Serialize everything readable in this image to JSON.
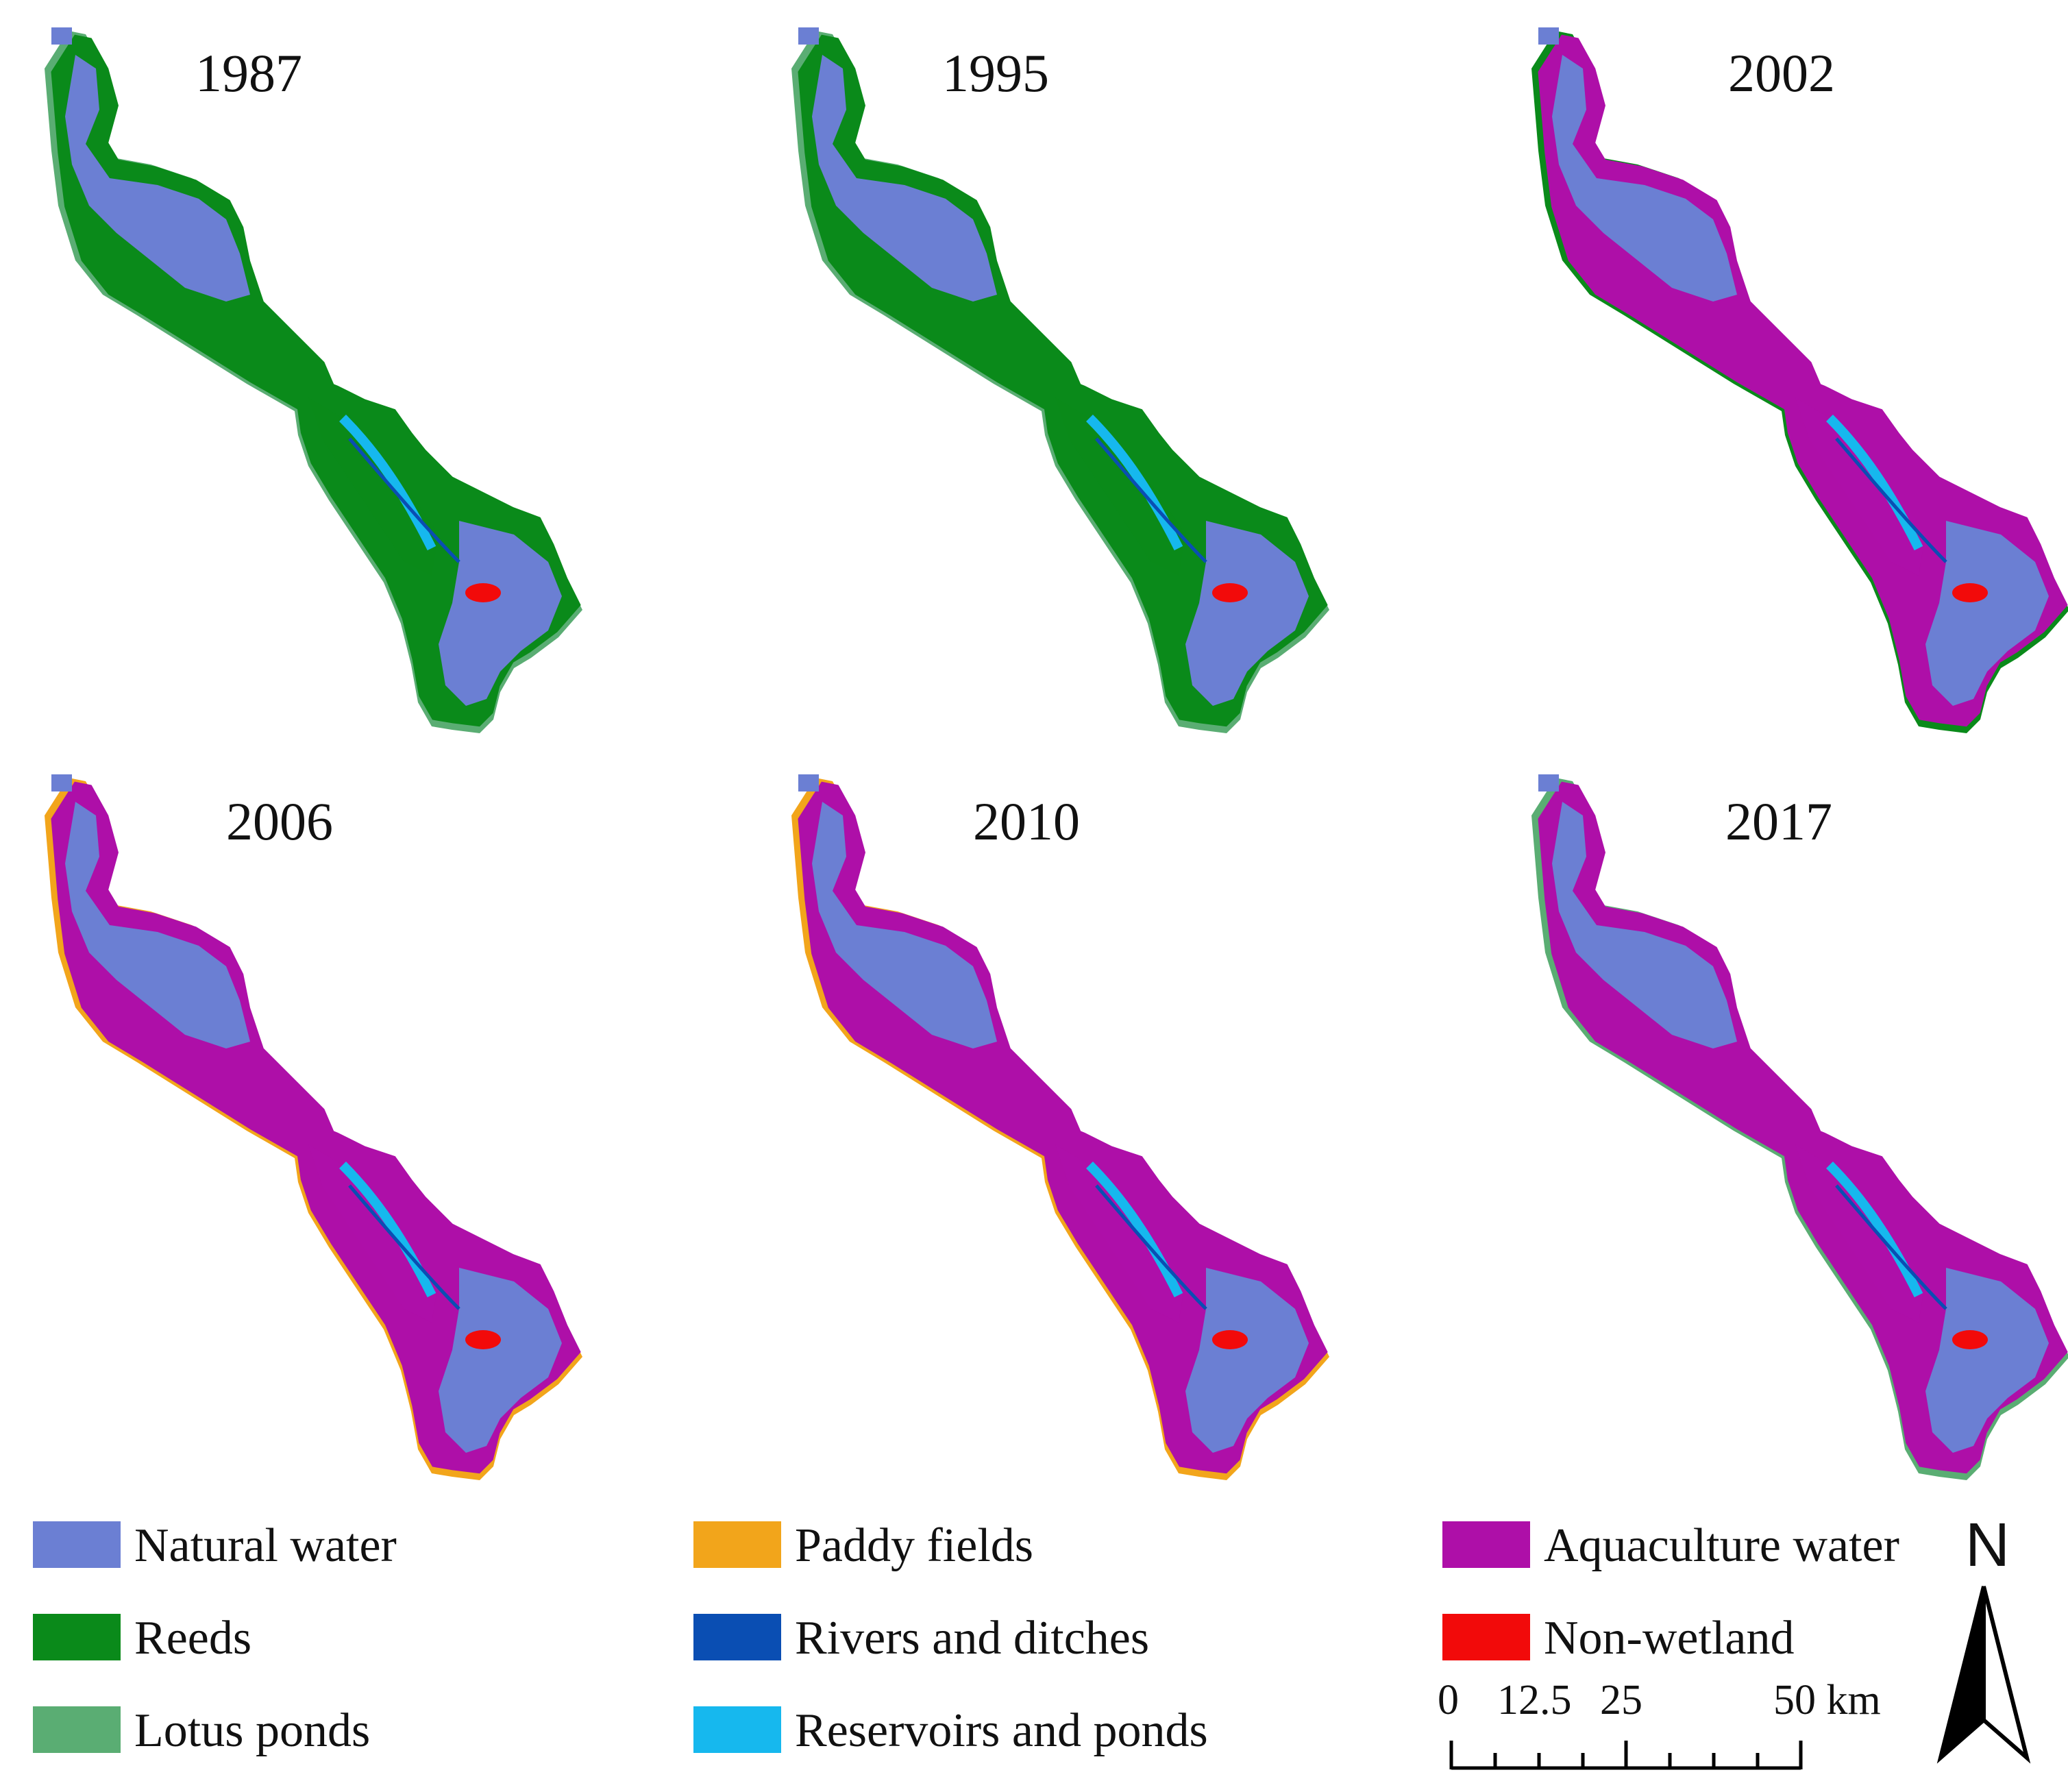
{
  "colors": {
    "natural_water": "#6b7fd3",
    "reeds": "#0a8a1a",
    "lotus_ponds": "#5aad73",
    "paddy_fields": "#f2a51b",
    "rivers_and_ditches": "#0a4eb3",
    "reservoirs_and_ponds": "#16b8ee",
    "aquaculture_water": "#ae0fa8",
    "non_wetland": "#f20a0a"
  },
  "maps": [
    {
      "year": "1987",
      "dominant": "natural_water",
      "secondary": "reeds",
      "margin": "lotus_ponds",
      "patch": "non_wetland"
    },
    {
      "year": "1995",
      "dominant": "natural_water",
      "secondary": "reeds",
      "margin": "lotus_ponds",
      "patch": "non_wetland"
    },
    {
      "year": "2002",
      "dominant": "natural_water",
      "secondary": "aquaculture_water",
      "margin": "reeds",
      "patch": "non_wetland"
    },
    {
      "year": "2006",
      "dominant": "natural_water",
      "secondary": "aquaculture_water",
      "margin": "paddy_fields",
      "patch": "non_wetland"
    },
    {
      "year": "2010",
      "dominant": "natural_water",
      "secondary": "aquaculture_water",
      "margin": "paddy_fields",
      "patch": "non_wetland"
    },
    {
      "year": "2017",
      "dominant": "natural_water",
      "secondary": "aquaculture_water",
      "margin": "lotus_ponds",
      "patch": "non_wetland"
    }
  ],
  "legend": [
    {
      "label": "Natural water",
      "color": "#6b7fd3"
    },
    {
      "label": "Reeds",
      "color": "#0a8a1a"
    },
    {
      "label": "Lotus ponds",
      "color": "#5aad73"
    },
    {
      "label": "Paddy fields",
      "color": "#f2a51b"
    },
    {
      "label": "Rivers and ditches",
      "color": "#0a4eb3"
    },
    {
      "label": "Reservoirs and ponds",
      "color": "#16b8ee"
    },
    {
      "label": "Aquaculture water",
      "color": "#ae0fa8"
    },
    {
      "label": "Non-wetland",
      "color": "#f20a0a"
    }
  ],
  "north_arrow": {
    "label": "N"
  },
  "scale_bar": {
    "ticks": [
      "0",
      "12.5",
      "25",
      "50 km"
    ]
  }
}
